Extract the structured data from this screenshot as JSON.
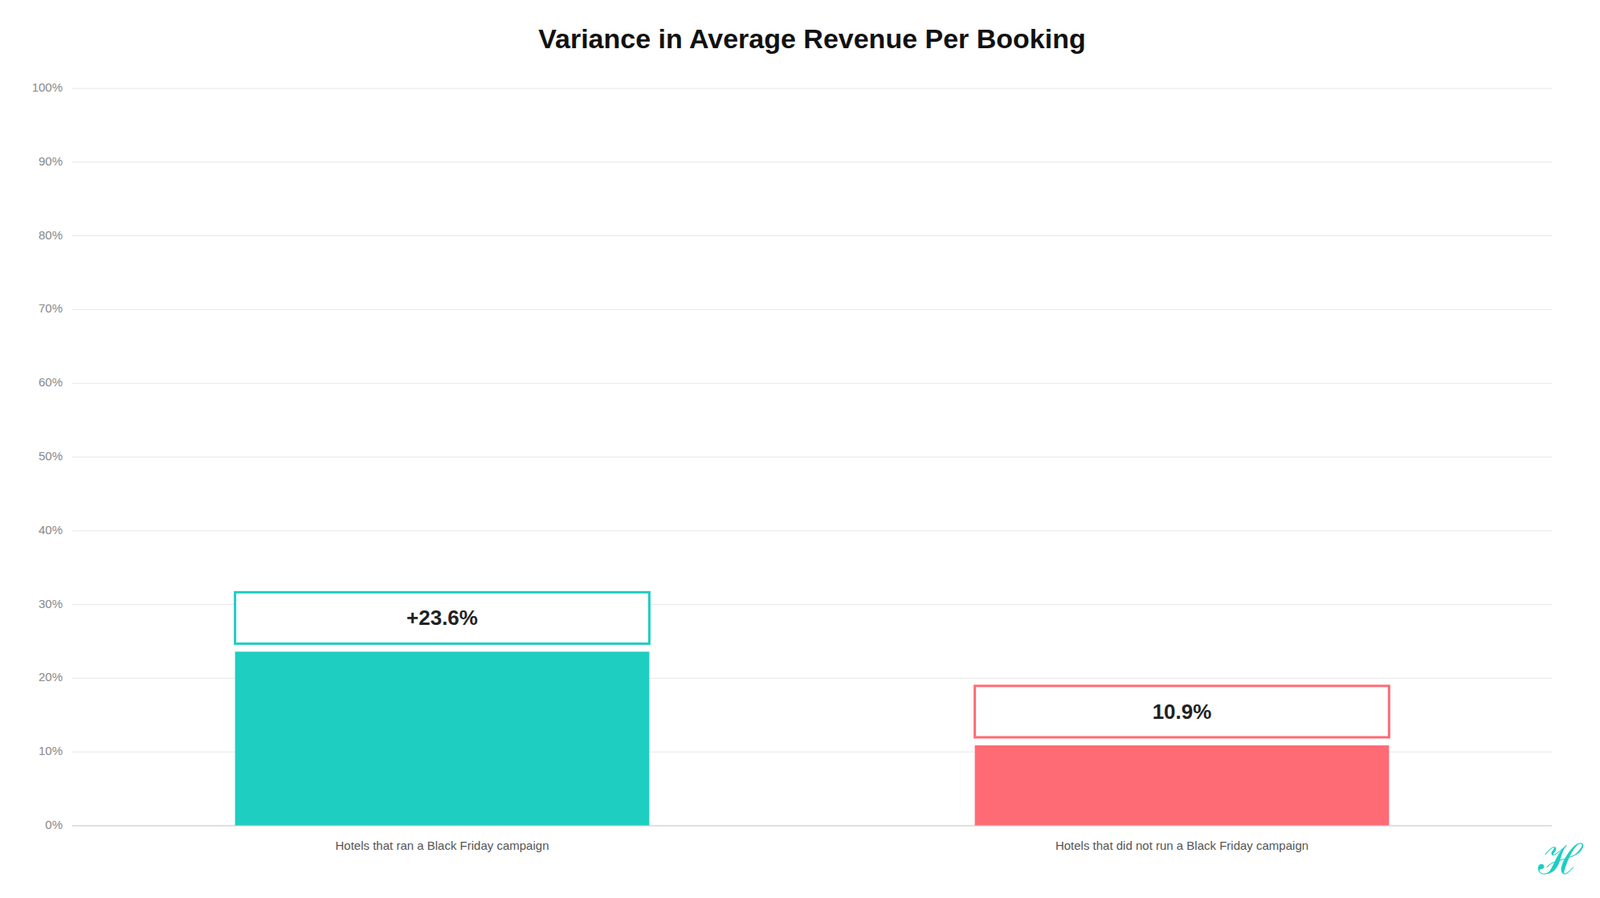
{
  "chart_data": {
    "type": "bar",
    "title": "Variance in Average Revenue Per Booking",
    "categories": [
      "Hotels that ran a Black Friday campaign",
      "Hotels that did not run a Black Friday campaign"
    ],
    "values": [
      23.6,
      10.9
    ],
    "value_labels": [
      "+23.6%",
      "10.9%"
    ],
    "data_labels": true,
    "colors": [
      "#1ecec0",
      "#ff6b75"
    ],
    "ylim": [
      0,
      100
    ],
    "yticks": [
      {
        "value": 0,
        "label": "0%"
      },
      {
        "value": 10,
        "label": "10%"
      },
      {
        "value": 20,
        "label": "20%"
      },
      {
        "value": 30,
        "label": "30%"
      },
      {
        "value": 40,
        "label": "40%"
      },
      {
        "value": 50,
        "label": "50%"
      },
      {
        "value": 60,
        "label": "60%"
      },
      {
        "value": 70,
        "label": "70%"
      },
      {
        "value": 80,
        "label": "80%"
      },
      {
        "value": 90,
        "label": "90%"
      },
      {
        "value": 100,
        "label": "100%"
      }
    ],
    "grid": true,
    "annotations": [
      {
        "text": "ℋ",
        "color": "#1ecec0"
      }
    ]
  }
}
